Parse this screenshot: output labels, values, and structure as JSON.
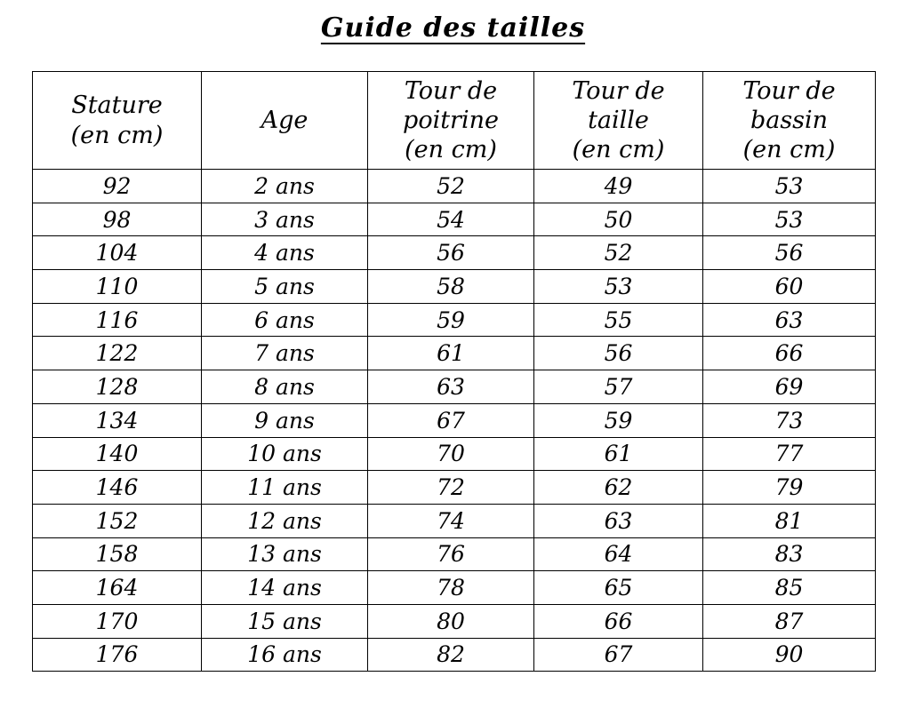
{
  "title": "Guide des tailles",
  "table": {
    "column_keys": [
      "stature",
      "age",
      "tour-de-poitrine",
      "tour-de-taille",
      "tour-de-bassin"
    ],
    "headers": [
      {
        "label": "Stature (en cm)",
        "lines": [
          "Stature",
          "(en cm)"
        ]
      },
      {
        "label": "Age",
        "lines": [
          "Age"
        ]
      },
      {
        "label": "Tour de poitrine (en cm)",
        "lines": [
          "Tour de",
          "poitrine",
          "(en cm)"
        ]
      },
      {
        "label": "Tour de taille (en cm)",
        "lines": [
          "Tour de",
          "taille",
          "(en cm)"
        ]
      },
      {
        "label": "Tour de bassin (en cm)",
        "lines": [
          "Tour de",
          "bassin",
          "(en cm)"
        ]
      }
    ],
    "rows": [
      [
        "92",
        "2 ans",
        "52",
        "49",
        "53"
      ],
      [
        "98",
        "3 ans",
        "54",
        "50",
        "53"
      ],
      [
        "104",
        "4 ans",
        "56",
        "52",
        "56"
      ],
      [
        "110",
        "5 ans",
        "58",
        "53",
        "60"
      ],
      [
        "116",
        "6 ans",
        "59",
        "55",
        "63"
      ],
      [
        "122",
        "7 ans",
        "61",
        "56",
        "66"
      ],
      [
        "128",
        "8 ans",
        "63",
        "57",
        "69"
      ],
      [
        "134",
        "9 ans",
        "67",
        "59",
        "73"
      ],
      [
        "140",
        "10 ans",
        "70",
        "61",
        "77"
      ],
      [
        "146",
        "11 ans",
        "72",
        "62",
        "79"
      ],
      [
        "152",
        "12 ans",
        "74",
        "63",
        "81"
      ],
      [
        "158",
        "13 ans",
        "76",
        "64",
        "83"
      ],
      [
        "164",
        "14 ans",
        "78",
        "65",
        "85"
      ],
      [
        "170",
        "15 ans",
        "80",
        "66",
        "87"
      ],
      [
        "176",
        "16 ans",
        "82",
        "67",
        "90"
      ]
    ]
  },
  "colors": {
    "text": "#000000",
    "border": "#000000",
    "background": "#ffffff"
  }
}
